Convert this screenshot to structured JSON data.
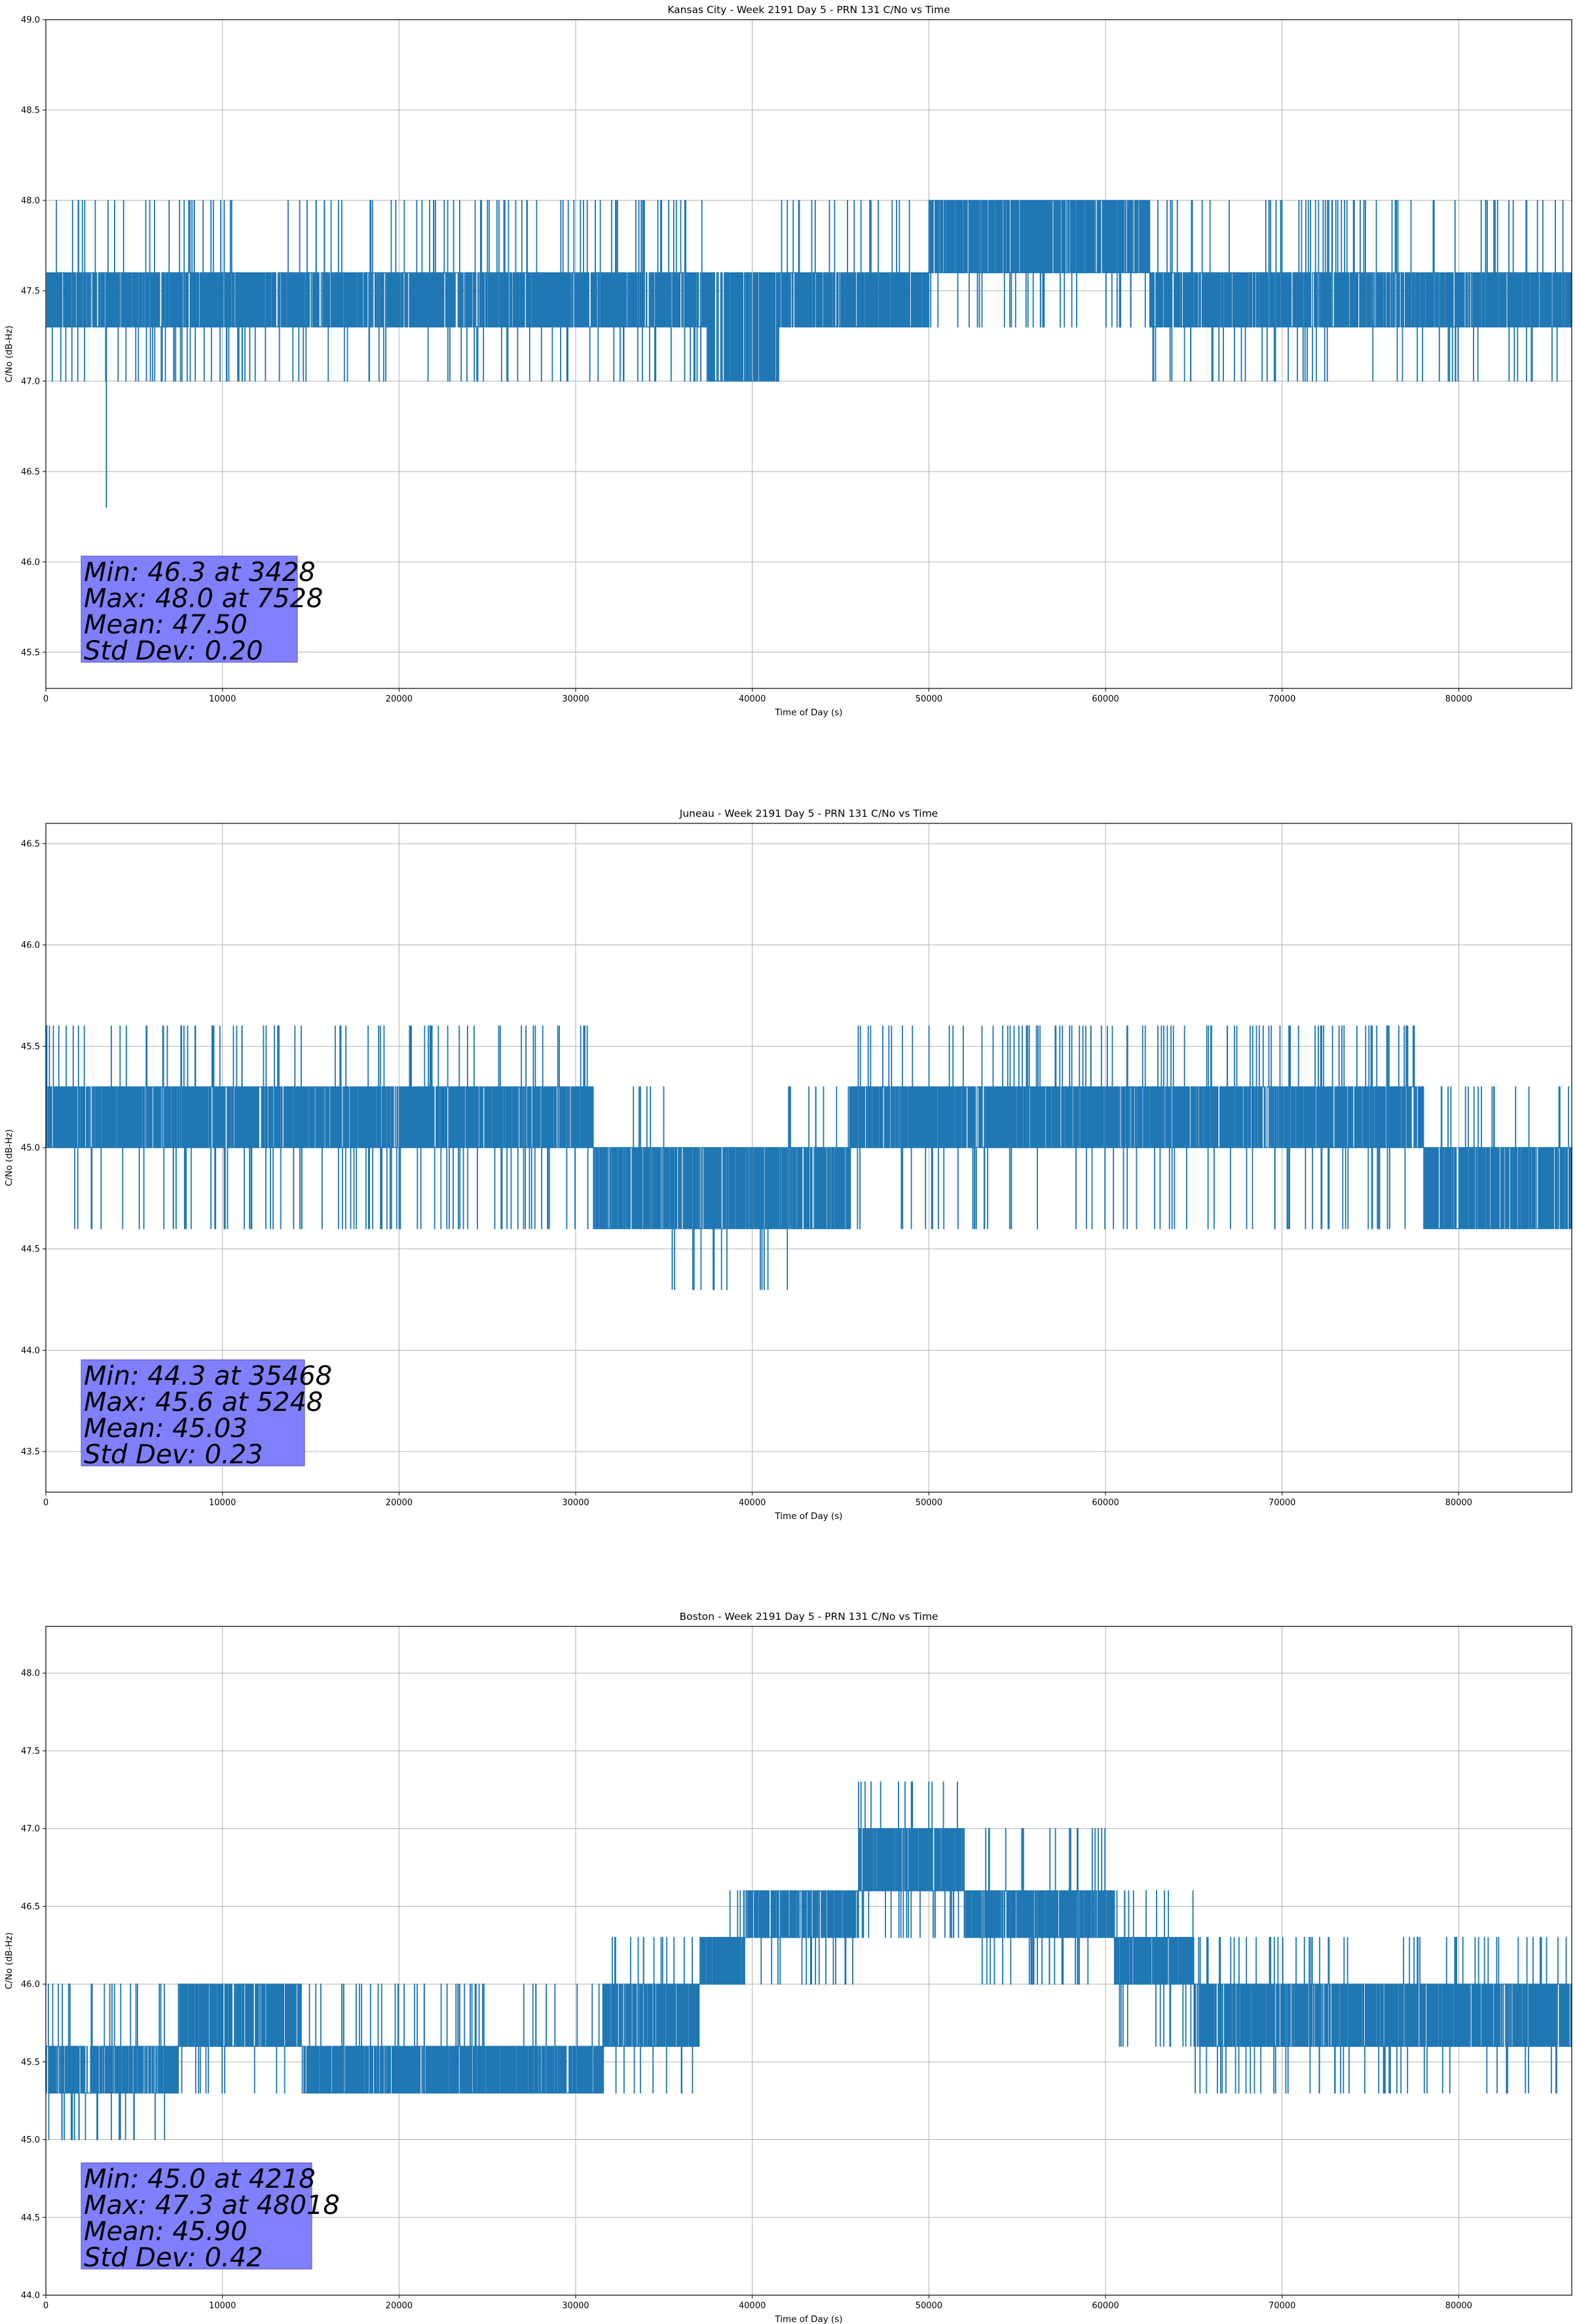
{
  "chart_data": [
    {
      "type": "line",
      "title": "Kansas City - Week 2191 Day 5 - PRN 131 C/No vs Time",
      "xlabel": "Time of Day (s)",
      "ylabel": "C/No (dB-Hz)",
      "xlim": [
        0,
        86400
      ],
      "ylim": [
        45.3,
        49.0
      ],
      "xticks": [
        "0",
        "10000",
        "20000",
        "30000",
        "40000",
        "50000",
        "60000",
        "70000",
        "80000"
      ],
      "yticks": [
        "45.5",
        "46.0",
        "46.5",
        "47.0",
        "47.5",
        "48.0",
        "48.5",
        "49.0"
      ],
      "grid": true,
      "series_color": "#1f77b4",
      "levels": [
        46.3,
        47.0,
        47.3,
        47.6,
        48.0
      ],
      "segments": [
        {
          "x": [
            0,
            7500
          ],
          "base": [
            47.3,
            47.6
          ],
          "spikes_up": 48.0,
          "spikes_down": 47.0
        },
        {
          "x": [
            7500,
            37500
          ],
          "base": [
            47.3,
            47.6
          ],
          "spikes_up": 48.0,
          "spikes_down": 47.0
        },
        {
          "x": [
            37500,
            41500
          ],
          "base": [
            47.0,
            47.6
          ],
          "spikes_up": 47.6,
          "spikes_down": 47.0
        },
        {
          "x": [
            41500,
            50000
          ],
          "base": [
            47.3,
            47.6
          ],
          "spikes_up": 48.0,
          "spikes_down": 47.3
        },
        {
          "x": [
            50000,
            62500
          ],
          "base": [
            47.6,
            48.0
          ],
          "spikes_up": 48.0,
          "spikes_down": 47.3
        },
        {
          "x": [
            62500,
            86400
          ],
          "base": [
            47.3,
            47.6
          ],
          "spikes_up": 48.0,
          "spikes_down": 47.0
        }
      ],
      "min_event": {
        "x": 3428,
        "y": 46.3
      },
      "stats": {
        "min": "Min: 46.3 at 3428",
        "max": "Max: 48.0 at 7528",
        "mean": "Mean: 47.50",
        "std": "Std Dev: 0.20"
      },
      "stats_box_color": "#8080ff"
    },
    {
      "type": "line",
      "title": "Juneau - Week 2191 Day 5 - PRN 131 C/No vs Time",
      "xlabel": "Time of Day (s)",
      "ylabel": "C/No (dB-Hz)",
      "xlim": [
        0,
        86400
      ],
      "ylim": [
        43.3,
        46.6
      ],
      "xticks": [
        "0",
        "10000",
        "20000",
        "30000",
        "40000",
        "50000",
        "60000",
        "70000",
        "80000"
      ],
      "yticks": [
        "43.5",
        "44.0",
        "44.5",
        "45.0",
        "45.5",
        "46.0",
        "46.5"
      ],
      "grid": true,
      "series_color": "#1f77b4",
      "levels": [
        44.3,
        44.6,
        45.0,
        45.3,
        45.6
      ],
      "segments": [
        {
          "x": [
            0,
            31000
          ],
          "base": [
            45.0,
            45.3
          ],
          "spikes_up": 45.6,
          "spikes_down": 44.6
        },
        {
          "x": [
            31000,
            35000
          ],
          "base": [
            44.6,
            45.0
          ],
          "spikes_up": 45.3,
          "spikes_down": 44.6
        },
        {
          "x": [
            35000,
            42000
          ],
          "base": [
            44.6,
            45.0
          ],
          "spikes_up": 45.0,
          "spikes_down": 44.3
        },
        {
          "x": [
            42000,
            45500
          ],
          "base": [
            44.6,
            45.0
          ],
          "spikes_up": 45.3,
          "spikes_down": 44.6
        },
        {
          "x": [
            45500,
            78000
          ],
          "base": [
            45.0,
            45.3
          ],
          "spikes_up": 45.6,
          "spikes_down": 44.6
        },
        {
          "x": [
            78000,
            86400
          ],
          "base": [
            44.6,
            45.0
          ],
          "spikes_up": 45.3,
          "spikes_down": 44.6
        }
      ],
      "min_event": {
        "x": 35468,
        "y": 44.3
      },
      "stats": {
        "min": "Min: 44.3 at 35468",
        "max": "Max: 45.6 at 5248",
        "mean": "Mean: 45.03",
        "std": "Std Dev: 0.23"
      },
      "stats_box_color": "#8080ff"
    },
    {
      "type": "line",
      "title": "Boston - Week 2191 Day 5 - PRN 131 C/No vs Time",
      "xlabel": "Time of Day (s)",
      "ylabel": "C/No (dB-Hz)",
      "xlim": [
        0,
        86400
      ],
      "ylim": [
        44.0,
        48.3
      ],
      "xticks": [
        "0",
        "10000",
        "20000",
        "30000",
        "40000",
        "50000",
        "60000",
        "70000",
        "80000"
      ],
      "yticks": [
        "44.0",
        "44.5",
        "45.0",
        "45.5",
        "46.0",
        "46.5",
        "47.0",
        "47.5",
        "48.0"
      ],
      "grid": true,
      "series_color": "#1f77b4",
      "levels": [
        45.0,
        45.3,
        45.6,
        46.0,
        46.3,
        46.6,
        47.0,
        47.3
      ],
      "segments": [
        {
          "x": [
            0,
            7500
          ],
          "base": [
            45.3,
            45.6
          ],
          "spikes_up": 46.0,
          "spikes_down": 45.0
        },
        {
          "x": [
            7500,
            14500
          ],
          "base": [
            45.6,
            46.0
          ],
          "spikes_up": 46.0,
          "spikes_down": 45.3
        },
        {
          "x": [
            14500,
            31500
          ],
          "base": [
            45.3,
            45.6
          ],
          "spikes_up": 46.0,
          "spikes_down": 45.3
        },
        {
          "x": [
            31500,
            37000
          ],
          "base": [
            45.6,
            46.0
          ],
          "spikes_up": 46.3,
          "spikes_down": 45.3
        },
        {
          "x": [
            37000,
            39500
          ],
          "base": [
            46.0,
            46.3
          ],
          "spikes_up": 46.6,
          "spikes_down": 46.0
        },
        {
          "x": [
            39500,
            46000
          ],
          "base": [
            46.3,
            46.6
          ],
          "spikes_up": 46.6,
          "spikes_down": 46.0
        },
        {
          "x": [
            46000,
            52000
          ],
          "base": [
            46.6,
            47.0
          ],
          "spikes_up": 47.3,
          "spikes_down": 46.3
        },
        {
          "x": [
            52000,
            60500
          ],
          "base": [
            46.3,
            46.6
          ],
          "spikes_up": 47.0,
          "spikes_down": 46.0
        },
        {
          "x": [
            60500,
            65000
          ],
          "base": [
            46.0,
            46.3
          ],
          "spikes_up": 46.6,
          "spikes_down": 45.6
        },
        {
          "x": [
            65000,
            86400
          ],
          "base": [
            45.6,
            46.0
          ],
          "spikes_up": 46.3,
          "spikes_down": 45.3
        }
      ],
      "min_event": {
        "x": 4218,
        "y": 45.0
      },
      "stats": {
        "min": "Min: 45.0 at 4218",
        "max": "Max: 47.3 at 48018",
        "mean": "Mean: 45.90",
        "std": "Std Dev: 0.42"
      },
      "stats_box_color": "#8080ff"
    }
  ]
}
